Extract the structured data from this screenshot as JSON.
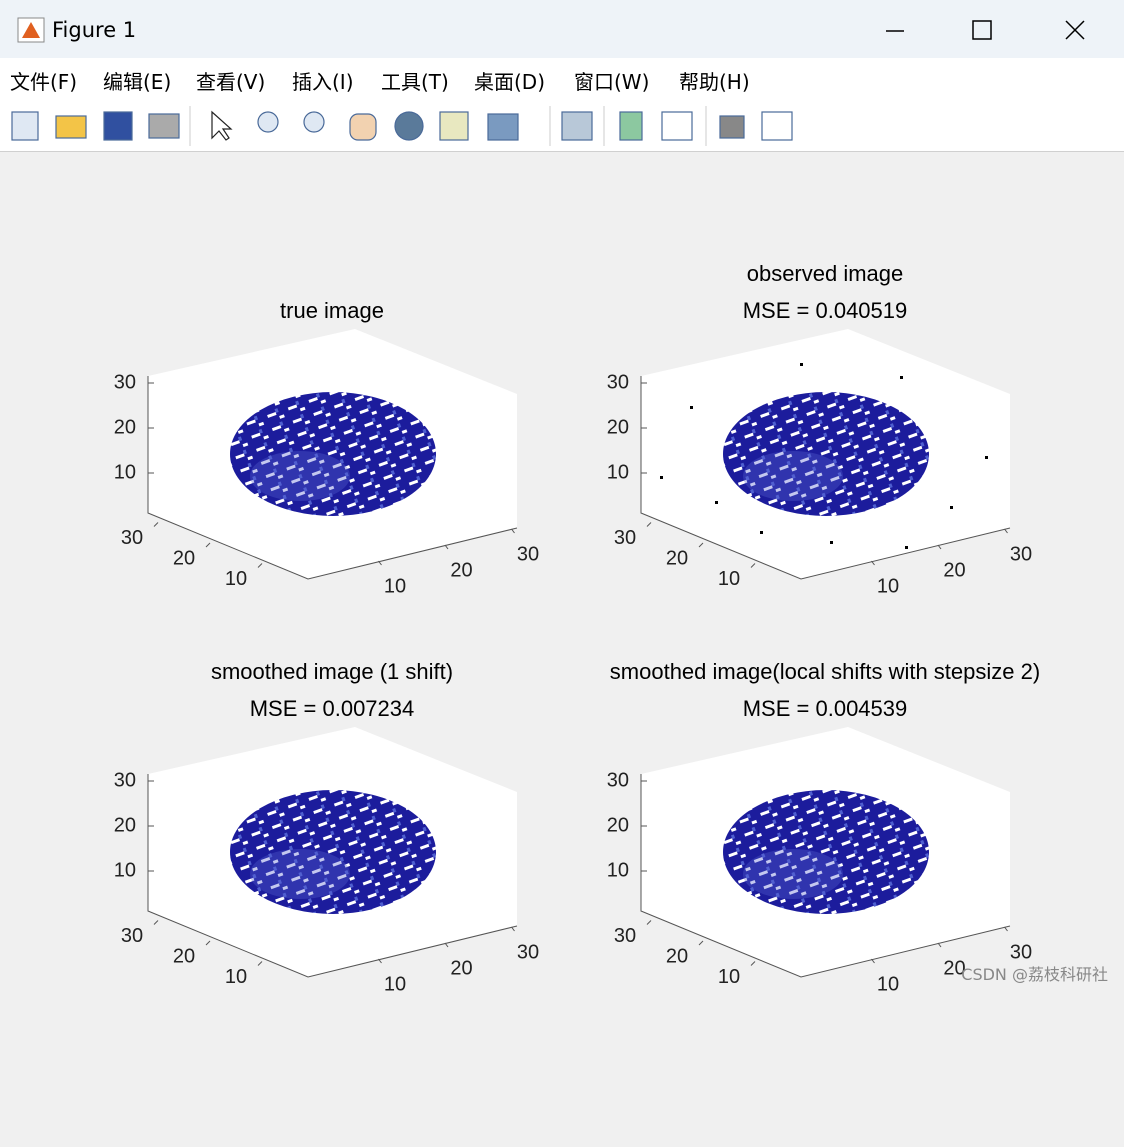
{
  "window": {
    "title": "Figure 1"
  },
  "menu": [
    "文件(F)",
    "编辑(E)",
    "查看(V)",
    "插入(I)",
    "工具(T)",
    "桌面(D)",
    "窗口(W)",
    "帮助(H)"
  ],
  "plots": [
    {
      "title": [
        "true image"
      ],
      "zticks": [
        10,
        20,
        30
      ],
      "yticks": [
        10,
        20,
        30
      ],
      "xticks": [
        10,
        20,
        30
      ]
    },
    {
      "title": [
        "observed image",
        "MSE = 0.040519"
      ],
      "zticks": [
        10,
        20,
        30
      ],
      "yticks": [
        10,
        20,
        30
      ],
      "xticks": [
        10,
        20,
        30
      ]
    },
    {
      "title": [
        "smoothed image (1 shift)",
        "MSE = 0.007234"
      ],
      "zticks": [
        10,
        20,
        30
      ],
      "yticks": [
        10,
        20,
        30
      ],
      "xticks": [
        10,
        20,
        30
      ]
    },
    {
      "title": [
        "smoothed image(local shifts with stepsize 2)",
        "MSE = 0.004539"
      ],
      "zticks": [
        10,
        20,
        30
      ],
      "yticks": [
        10,
        20,
        30
      ],
      "xticks": [
        10,
        20,
        30
      ]
    }
  ],
  "watermark": "CSDN @荔枝科研社"
}
